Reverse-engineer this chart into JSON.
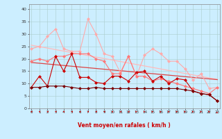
{
  "x": [
    0,
    1,
    2,
    3,
    4,
    5,
    6,
    7,
    8,
    9,
    10,
    11,
    12,
    13,
    14,
    15,
    16,
    17,
    18,
    19,
    20,
    21,
    22,
    23
  ],
  "line_dark_red_markers": [
    8.5,
    13,
    9,
    21,
    15,
    22,
    12.5,
    12.5,
    10.5,
    10,
    13,
    13,
    11,
    14.5,
    15,
    11,
    13,
    10,
    12,
    11.5,
    7,
    6,
    5.5,
    3
  ],
  "line_darkest_markers": [
    8.5,
    8.5,
    9,
    9,
    9,
    8.5,
    8,
    8,
    8.5,
    8,
    8,
    8,
    8,
    8,
    8,
    8,
    8,
    8,
    8,
    7.5,
    7,
    6,
    5.5,
    3
  ],
  "line_salmon_markers": [
    19,
    20,
    19,
    21,
    21,
    22,
    22,
    22,
    20,
    19,
    14,
    14,
    21,
    13,
    13,
    11,
    12,
    11,
    10,
    9,
    8,
    7,
    6,
    8.5
  ],
  "line_light_markers": [
    24,
    25,
    29,
    32,
    24,
    23,
    23,
    36,
    30,
    22,
    21,
    14.5,
    21,
    13,
    21.5,
    24,
    22,
    19,
    19,
    16,
    11.5,
    14,
    8,
    8.5
  ],
  "line_trend_dark": [
    18.5,
    18.2,
    17.9,
    17.6,
    17.3,
    17.0,
    16.7,
    16.4,
    16.1,
    15.8,
    15.5,
    15.2,
    14.9,
    14.6,
    14.3,
    14.0,
    13.7,
    13.4,
    13.1,
    12.8,
    12.5,
    12.2,
    11.9,
    11.6
  ],
  "line_trend_light": [
    25.5,
    24.9,
    24.3,
    23.7,
    23.1,
    22.5,
    21.9,
    21.3,
    20.7,
    20.1,
    19.5,
    18.9,
    18.3,
    17.7,
    17.1,
    16.5,
    15.9,
    15.3,
    14.7,
    14.1,
    13.5,
    12.9,
    12.3,
    11.7
  ],
  "color_dark_red": "#cc0000",
  "color_darkest": "#7a0000",
  "color_salmon": "#ff7777",
  "color_light": "#ffaaaa",
  "color_trend_dark": "#dd4444",
  "color_trend_light": "#ffbbbb",
  "bg_color": "#cceeff",
  "grid_color": "#aacccc",
  "xlabel": "Vent moyen/en rafales ( km/h )",
  "yticks": [
    0,
    5,
    10,
    15,
    20,
    25,
    30,
    35,
    40
  ],
  "xticks": [
    0,
    1,
    2,
    3,
    4,
    5,
    6,
    7,
    8,
    9,
    10,
    11,
    12,
    13,
    14,
    15,
    16,
    17,
    18,
    19,
    20,
    21,
    22,
    23
  ],
  "xlim": [
    -0.3,
    23.3
  ],
  "ylim": [
    0,
    42
  ],
  "arrow_angles": [
    45,
    45,
    45,
    45,
    45,
    45,
    45,
    45,
    45,
    45,
    45,
    45,
    45,
    315,
    315,
    315,
    315,
    315,
    315,
    315,
    315,
    315,
    315,
    225
  ]
}
